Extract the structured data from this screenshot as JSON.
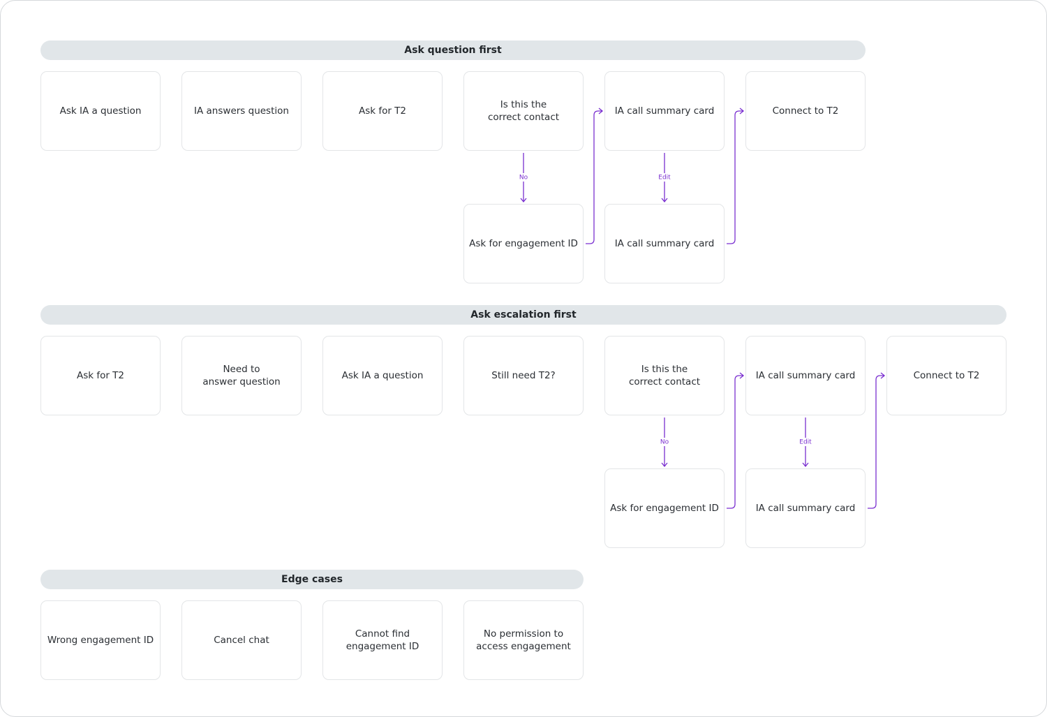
{
  "sections": [
    {
      "title": "Ask question first",
      "steps": [
        "Ask IA a question",
        "IA answers question",
        "Ask for T2",
        "Is this the correct contact",
        "IA call summary card",
        "Connect to T2"
      ],
      "branches": [
        {
          "edge_label": "No",
          "label": "Ask for engagement ID"
        },
        {
          "edge_label": "Edit",
          "label": "IA call summary card"
        }
      ]
    },
    {
      "title": "Ask escalation first",
      "steps": [
        "Ask for T2",
        "Need to answer question",
        "Ask IA a question",
        "Still need T2?",
        "Is this the correct contact",
        "IA call summary card",
        "Connect to T2"
      ],
      "branches": [
        {
          "edge_label": "No",
          "label": "Ask for engagement ID"
        },
        {
          "edge_label": "Edit",
          "label": "IA call summary card"
        }
      ]
    },
    {
      "title": "Edge cases",
      "steps": [
        "Wrong engagement ID",
        "Cancel chat",
        "Cannot find engagement ID",
        "No permission to access engagement"
      ],
      "branches": []
    }
  ]
}
